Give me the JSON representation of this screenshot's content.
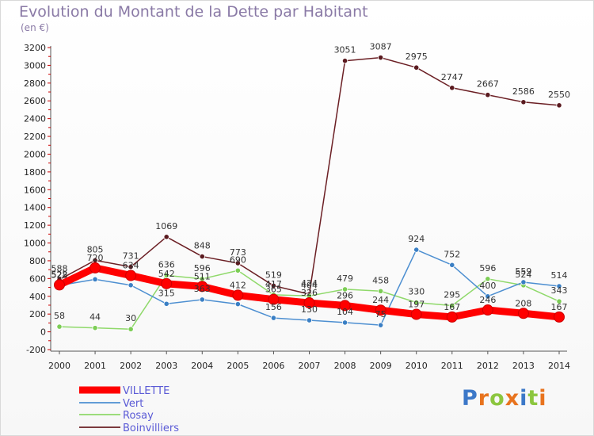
{
  "chart_data": {
    "type": "line",
    "title": "Evolution du Montant de la Dette par Habitant",
    "subtitle": "(en €)",
    "categories": [
      "2000",
      "2001",
      "2002",
      "2003",
      "2004",
      "2005",
      "2006",
      "2007",
      "2008",
      "2009",
      "2010",
      "2011",
      "2012",
      "2013",
      "2014"
    ],
    "ylim": [
      -200,
      3200
    ],
    "yticks": [
      -200,
      0,
      200,
      400,
      600,
      800,
      1000,
      1200,
      1400,
      1600,
      1800,
      2000,
      2200,
      2400,
      2600,
      2800,
      3000,
      3200
    ],
    "grid": false,
    "legend_position": "bottom-left",
    "series": [
      {
        "name": "VILLETTE",
        "color": "#ff0000",
        "values": [
          528,
          720,
          634,
          542,
          511,
          412,
          365,
          326,
          296,
          244,
          197,
          167,
          246,
          208,
          167
        ]
      },
      {
        "name": "Vert",
        "color": "#4d8fd1",
        "values": [
          522,
          591,
          525,
          315,
          363,
          312,
          156,
          130,
          104,
          75,
          924,
          752,
          400,
          559,
          514
        ]
      },
      {
        "name": "Rosay",
        "color": "#8fd96a",
        "values": [
          58,
          44,
          30,
          636,
          596,
          690,
          417,
          404,
          479,
          458,
          330,
          295,
          596,
          524,
          343
        ]
      },
      {
        "name": "Boinvilliers",
        "color": "#6b1f24",
        "values": [
          588,
          805,
          731,
          1069,
          848,
          773,
          519,
          424,
          3051,
          3087,
          2975,
          2747,
          2667,
          2586,
          2550
        ]
      }
    ],
    "data_labels": {
      "VILLETTE": [
        "528",
        "720",
        "634",
        "542",
        "511",
        "412",
        "365",
        "326",
        "296",
        "244",
        "197",
        "167",
        "246",
        "208",
        "167"
      ],
      "Vert": [
        "522",
        "",
        "",
        "315",
        "363",
        "",
        "156",
        "130",
        "104",
        "75",
        "924",
        "752",
        "400",
        "559",
        "514"
      ],
      "Rosay": [
        "58",
        "44",
        "30",
        "636",
        "596",
        "690",
        "417",
        "404",
        "479",
        "458",
        "330",
        "295",
        "596",
        "524",
        "343"
      ],
      "Boinvilliers": [
        "588",
        "805",
        "731",
        "1069",
        "848",
        "773",
        "519",
        "424",
        "3051",
        "3087",
        "2975",
        "2747",
        "2667",
        "2586",
        "2550"
      ]
    }
  },
  "brand": {
    "logo_text": "Proxiti",
    "logo_letters": [
      "P",
      "r",
      "o",
      "x",
      "i",
      "t",
      "i"
    ],
    "logo_colors": [
      "#3c78c8",
      "#e8731e",
      "#8cc63f",
      "#e8731e",
      "#3c78c8",
      "#8cc63f",
      "#e8731e"
    ]
  }
}
